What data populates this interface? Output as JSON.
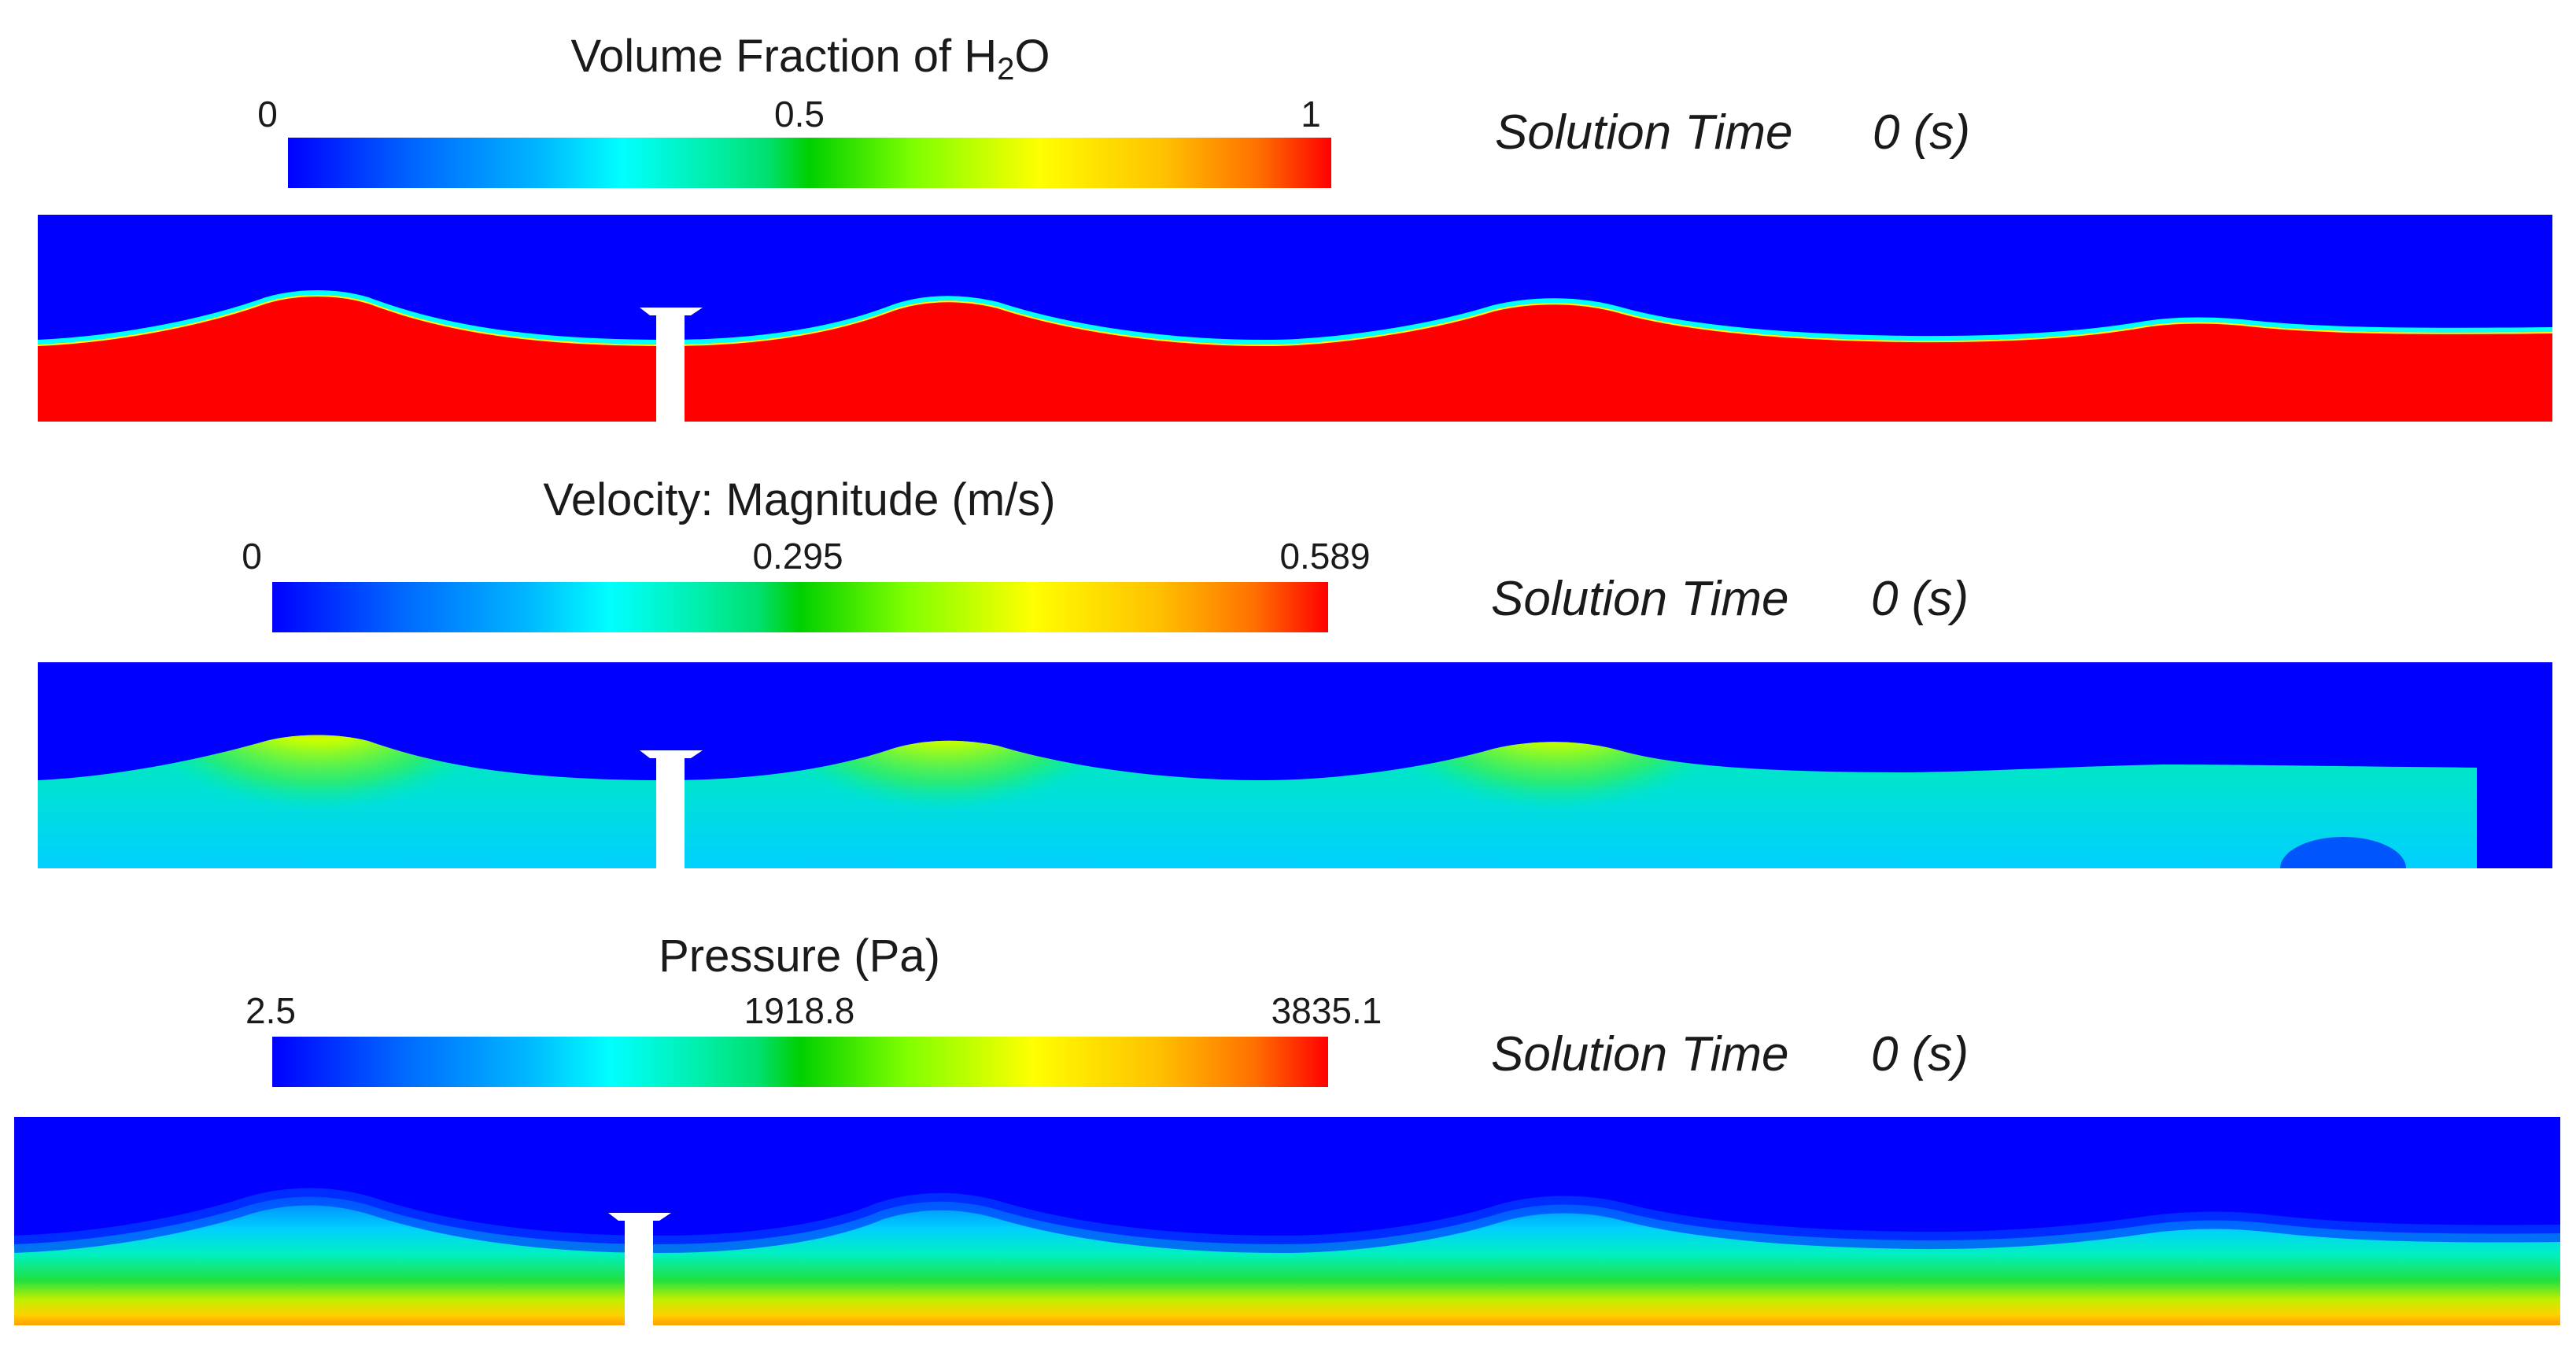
{
  "panels": [
    {
      "title_prefix": "Volume Fraction of H",
      "title_sub": "2",
      "title_suffix": "O",
      "ticks": [
        "0",
        "0.5",
        "1"
      ],
      "solution_label": "Solution Time",
      "solution_value": "0 (s)"
    },
    {
      "title": "Velocity: Magnitude (m/s)",
      "ticks": [
        "0",
        "0.295",
        "0.589"
      ],
      "solution_label": "Solution Time",
      "solution_value": "0 (s)"
    },
    {
      "title": "Pressure (Pa)",
      "ticks": [
        "2.5",
        "1918.8",
        "3835.1"
      ],
      "solution_label": "Solution Time",
      "solution_value": "0 (s)"
    }
  ],
  "colors": {
    "air": "#0000ff",
    "water": "#ff0000",
    "structure": "#ffffff"
  }
}
